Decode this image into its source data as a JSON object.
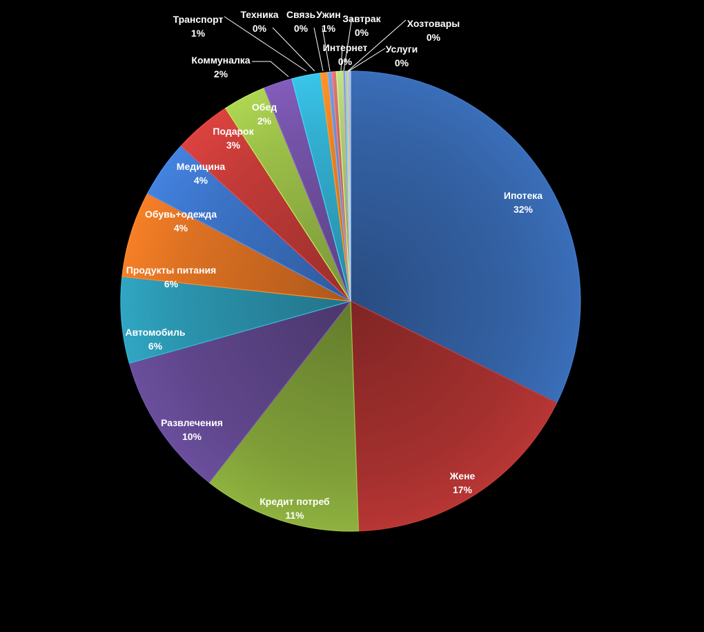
{
  "chart_data": {
    "type": "pie",
    "title": "",
    "slices": [
      {
        "label": "Ипотека",
        "value": 32,
        "pct_label": "32%",
        "color": "#3462A5"
      },
      {
        "label": "Жене",
        "value": 17,
        "pct_label": "17%",
        "color": "#A3302E"
      },
      {
        "label": "Кредит потреб",
        "value": 11,
        "pct_label": "11%",
        "color": "#7F9E38"
      },
      {
        "label": "Развлечения",
        "value": 10,
        "pct_label": "10%",
        "color": "#5F468B"
      },
      {
        "label": "Автомобиль",
        "value": 6,
        "pct_label": "6%",
        "color": "#2B94AE"
      },
      {
        "label": "Продукты питания",
        "value": 6,
        "pct_label": "6%",
        "color": "#DC7122"
      },
      {
        "label": "Обувь+одежда",
        "value": 4,
        "pct_label": "4%",
        "color": "#3C74C8"
      },
      {
        "label": "Медицина",
        "value": 4,
        "pct_label": "4%",
        "color": "#C43B38"
      },
      {
        "label": "Подарок",
        "value": 3,
        "pct_label": "3%",
        "color": "#9BBF48"
      },
      {
        "label": "Обед",
        "value": 2,
        "pct_label": "2%",
        "color": "#7453A7"
      },
      {
        "label": "Коммуналка",
        "value": 2,
        "pct_label": "2%",
        "color": "#33B0D1"
      },
      {
        "label": "Транспорт",
        "value": 0.5,
        "pct_label": "1%",
        "color": "#F08424"
      },
      {
        "label": "Техника",
        "value": 0.3,
        "pct_label": "0%",
        "color": "#6E8FC8"
      },
      {
        "label": "Связь",
        "value": 0.3,
        "pct_label": "0%",
        "color": "#C96A69"
      },
      {
        "label": "Ужин",
        "value": 0.5,
        "pct_label": "1%",
        "color": "#AFCB76"
      },
      {
        "label": "Интернет",
        "value": 0.12,
        "pct_label": "0%",
        "color": "#8E79B6"
      },
      {
        "label": "Завтрак",
        "value": 0.12,
        "pct_label": "0%",
        "color": "#5BC0DB"
      },
      {
        "label": "Хозтовары",
        "value": 0.12,
        "pct_label": "0%",
        "color": "#F5A35E"
      },
      {
        "label": "Услуги",
        "value": 0.12,
        "pct_label": "0%",
        "color": "#8AA6D6"
      }
    ]
  }
}
